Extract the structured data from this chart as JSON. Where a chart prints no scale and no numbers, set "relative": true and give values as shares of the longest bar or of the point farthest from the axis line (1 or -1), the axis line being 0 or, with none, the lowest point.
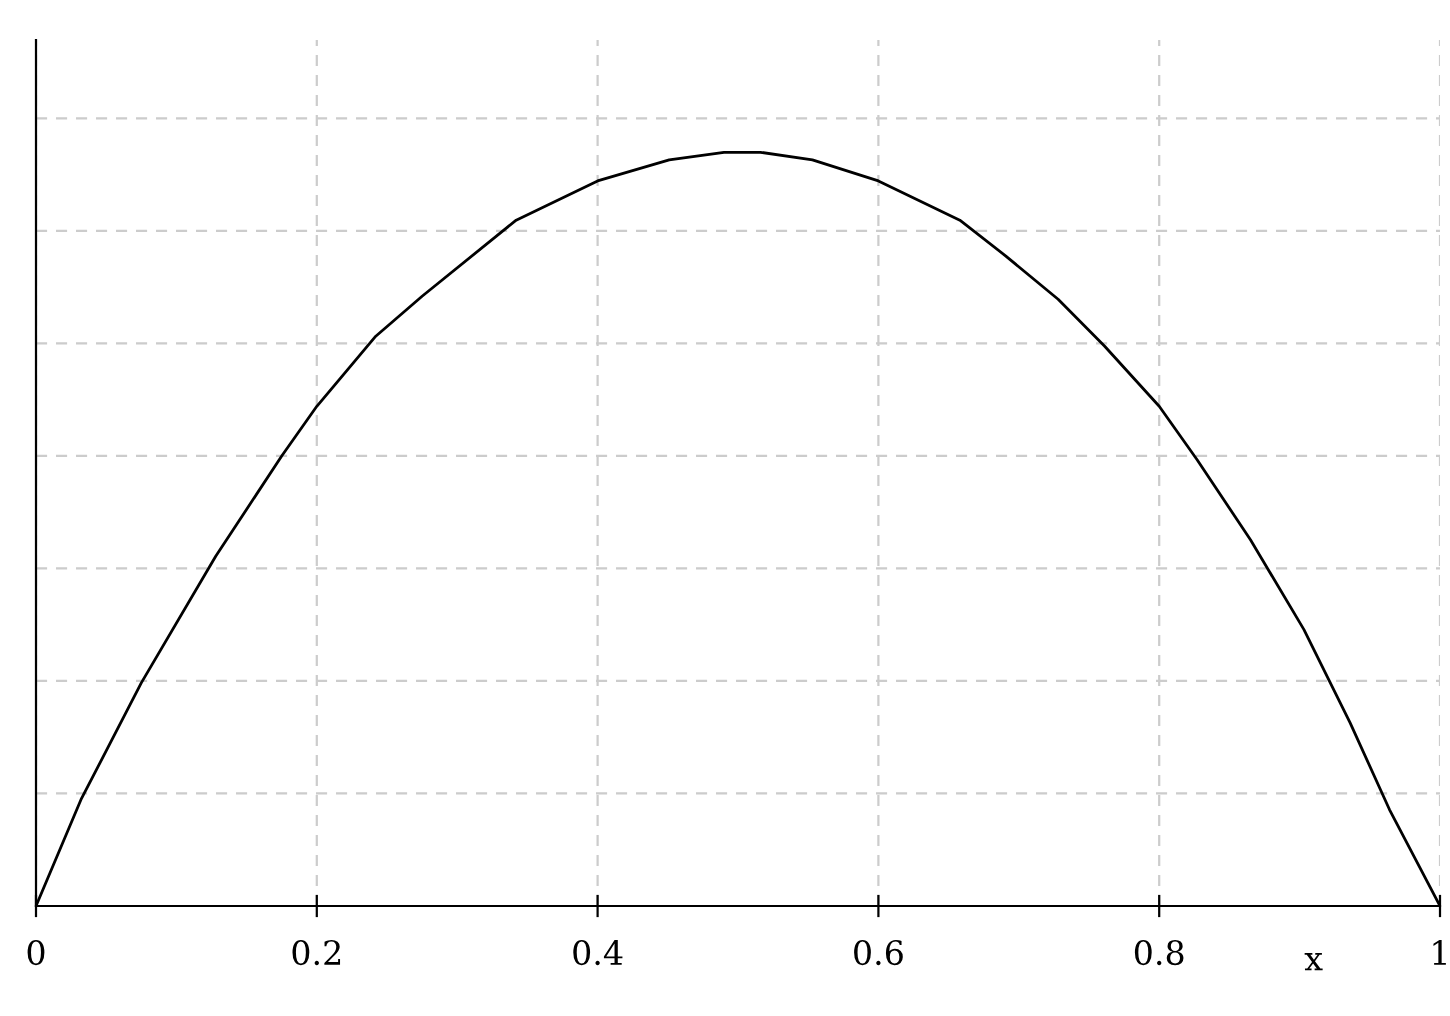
{
  "chart_data": {
    "type": "line",
    "xlabel": "x",
    "relative": true,
    "grid": true,
    "line_style": "solid",
    "marker": "none",
    "xlim": [
      0,
      1
    ],
    "xticks": [
      0,
      0.2,
      0.4,
      0.6,
      0.8,
      1
    ],
    "series": [
      {
        "color": "#000000",
        "x": [
          0,
          0.032,
          0.075,
          0.128,
          0.175,
          0.2,
          0.242,
          0.275,
          0.342,
          0.4,
          0.451,
          0.49,
          0.516,
          0.553,
          0.6,
          0.658,
          0.691,
          0.728,
          0.761,
          0.8,
          0.827,
          0.865,
          0.903,
          0.936,
          0.964,
          1
        ],
        "values": [
          0,
          0.141,
          0.296,
          0.464,
          0.597,
          0.663,
          0.756,
          0.809,
          0.91,
          0.962,
          0.99,
          1.0,
          1.0,
          0.99,
          0.962,
          0.91,
          0.862,
          0.805,
          0.743,
          0.663,
          0.592,
          0.486,
          0.367,
          0.243,
          0.128,
          0
        ]
      }
    ]
  }
}
